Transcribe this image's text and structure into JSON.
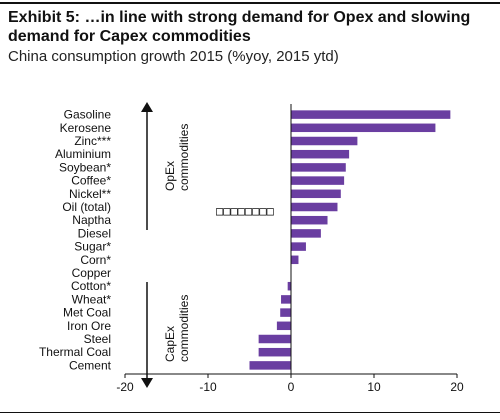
{
  "header": {
    "title": "Exhibit 5: …in line with strong demand for Opex and slowing demand for Capex commodities",
    "subtitle": "China consumption growth 2015 (%yoy, 2015 ytd)"
  },
  "chart_data": {
    "type": "bar",
    "orientation": "horizontal",
    "categories": [
      "Gasoline",
      "Kerosene",
      "Zinc***",
      "Aluminium",
      "Soybean*",
      "Coffee*",
      "Nickel**",
      "Oil (total)",
      "Naptha",
      "Diesel",
      "Sugar*",
      "Corn*",
      "Copper",
      "Cotton*",
      "Wheat*",
      "Met Coal",
      "Iron Ore",
      "Steel",
      "Thermal Coal",
      "Cement"
    ],
    "values": [
      19.2,
      17.4,
      8.0,
      7.0,
      6.6,
      6.4,
      6.0,
      5.6,
      4.4,
      3.6,
      1.8,
      0.9,
      0.0,
      -0.4,
      -1.2,
      -1.3,
      -1.7,
      -3.9,
      -3.9,
      -5.0
    ],
    "xlim": [
      -20,
      20
    ],
    "xticks": [
      -20,
      -10,
      0,
      10,
      20
    ],
    "bar_color": "#6a3ea1",
    "group_labels": {
      "opex": [
        "OpEx",
        "commodities"
      ],
      "capex": [
        "CapEx",
        "commodities"
      ]
    },
    "overlay_text": "□□□□□□□□"
  }
}
